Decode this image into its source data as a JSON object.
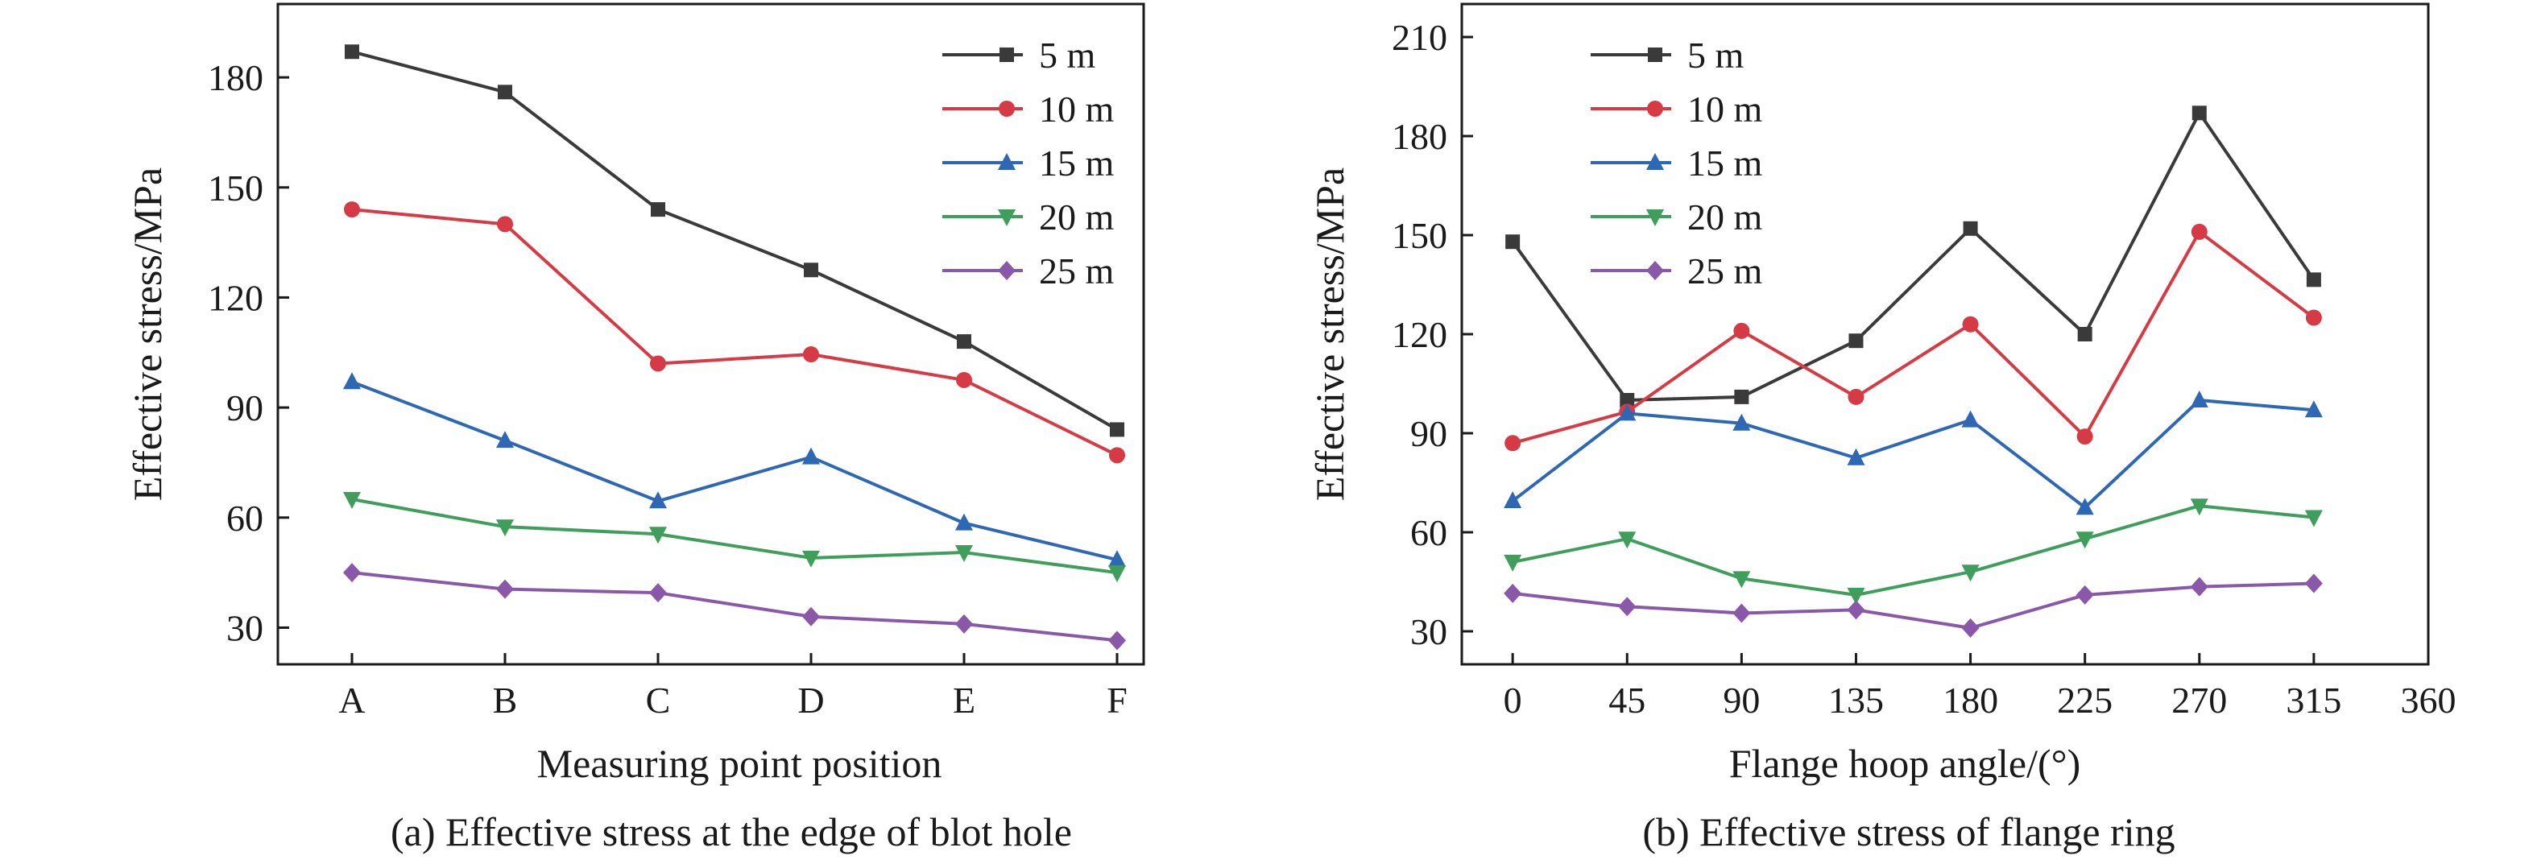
{
  "chart_data": [
    {
      "type": "line",
      "xlabel": "Measuring point position",
      "ylabel": "Effective stress/MPa",
      "caption": "(a) Effective stress at the edge of blot hole",
      "categories": [
        "A",
        "B",
        "C",
        "D",
        "E",
        "F"
      ],
      "ylim": [
        20,
        200
      ],
      "yticks": [
        "30",
        "60",
        "90",
        "120",
        "150",
        "180"
      ],
      "legend_position": "top-right",
      "grid": false,
      "series": [
        {
          "name": "5 m",
          "color": "#3a3a3a",
          "marker": "square",
          "values": [
            187,
            176,
            144,
            127.5,
            108,
            84
          ]
        },
        {
          "name": "10 m",
          "color": "#d63a45",
          "marker": "circle",
          "values": [
            144,
            140,
            102,
            104.5,
            97.5,
            77
          ]
        },
        {
          "name": "15 m",
          "color": "#2e68b4",
          "marker": "triangle-up",
          "values": [
            97,
            81,
            64.5,
            76.5,
            58.5,
            48.5
          ]
        },
        {
          "name": "20 m",
          "color": "#3f9e5c",
          "marker": "triangle-down",
          "values": [
            65,
            57.5,
            55.5,
            49,
            50.5,
            45
          ]
        },
        {
          "name": "25 m",
          "color": "#8a58a8",
          "marker": "diamond",
          "values": [
            45,
            40.5,
            39.5,
            33,
            31,
            26.5
          ]
        }
      ]
    },
    {
      "type": "line",
      "xlabel": "Flange hoop angle/(°)",
      "ylabel": "Effective stress/MPa",
      "caption": "(b) Effective stress of flange ring",
      "x": [
        0,
        45,
        90,
        135,
        180,
        225,
        270,
        315
      ],
      "xticks": [
        "0",
        "45",
        "90",
        "135",
        "180",
        "225",
        "270",
        "315",
        "360"
      ],
      "xlim": [
        -20,
        360
      ],
      "ylim": [
        20,
        220
      ],
      "yticks": [
        "30",
        "60",
        "90",
        "120",
        "150",
        "180",
        "210"
      ],
      "legend_position": "top-left",
      "grid": false,
      "series": [
        {
          "name": "5 m",
          "color": "#3a3a3a",
          "marker": "square",
          "values": [
            148,
            100,
            101,
            118,
            152,
            120,
            187,
            136.5
          ]
        },
        {
          "name": "10 m",
          "color": "#d63a45",
          "marker": "circle",
          "values": [
            87,
            96.5,
            121,
            101,
            123,
            89,
            151,
            125
          ]
        },
        {
          "name": "15 m",
          "color": "#2e68b4",
          "marker": "triangle-up",
          "values": [
            69.5,
            96,
            93,
            82.5,
            94,
            67.5,
            100,
            97
          ]
        },
        {
          "name": "20 m",
          "color": "#3f9e5c",
          "marker": "triangle-down",
          "values": [
            51,
            58,
            46,
            41,
            48,
            58,
            68,
            64.5
          ]
        },
        {
          "name": "25 m",
          "color": "#8a58a8",
          "marker": "diamond",
          "values": [
            41.5,
            37.5,
            35.5,
            36.5,
            31,
            41,
            43.5,
            44.5
          ]
        }
      ]
    }
  ]
}
